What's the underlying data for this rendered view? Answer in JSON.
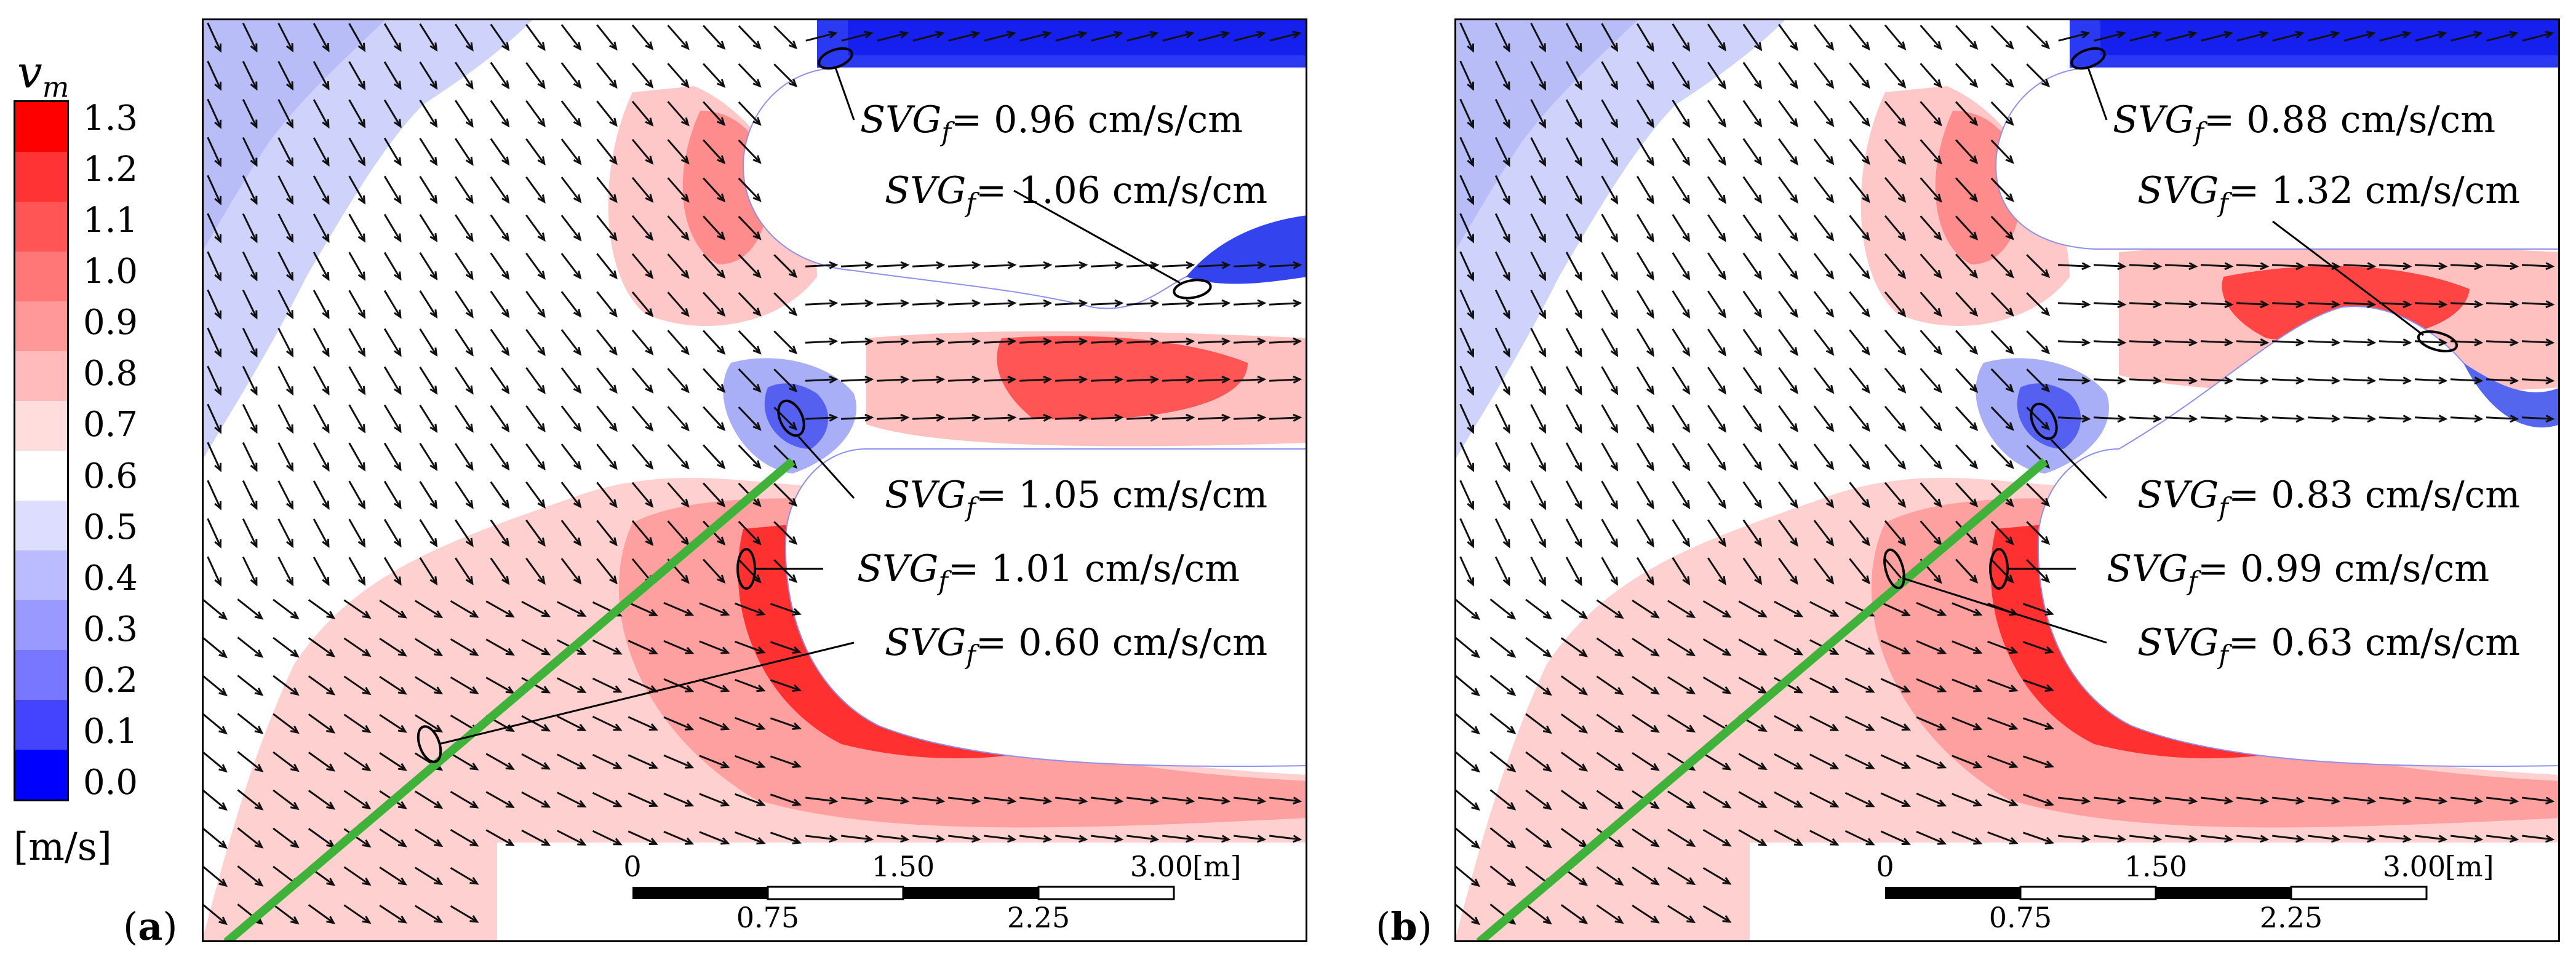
{
  "colorbar": {
    "variable": "v",
    "subscript": "m",
    "unit": "[m/s]",
    "ticks": [
      "1.3",
      "1.2",
      "1.1",
      "1.0",
      "0.9",
      "0.8",
      "0.7",
      "0.6",
      "0.5",
      "0.4",
      "0.3",
      "0.2",
      "0.1",
      "0.0"
    ],
    "colors": [
      "#ff0000",
      "#ff3333",
      "#ff5555",
      "#ff7777",
      "#ff9999",
      "#ffbbbb",
      "#ffdddd",
      "#ffffff",
      "#ddddff",
      "#bbbbff",
      "#9999ff",
      "#7777ff",
      "#4444ff",
      "#0000ff"
    ]
  },
  "panels": [
    {
      "label": "a",
      "annotations": [
        {
          "label": "SVG",
          "sub": "f",
          "value": "= 0.96 cm/s/cm"
        },
        {
          "label": "SVG",
          "sub": "f",
          "value": "= 1.06 cm/s/cm"
        },
        {
          "label": "SVG",
          "sub": "f",
          "value": "= 1.05 cm/s/cm"
        },
        {
          "label": "SVG",
          "sub": "f",
          "value": "= 1.01 cm/s/cm"
        },
        {
          "label": "SVG",
          "sub": "f",
          "value": "= 0.60 cm/s/cm"
        }
      ]
    },
    {
      "label": "b",
      "annotations": [
        {
          "label": "SVG",
          "sub": "f",
          "value": "= 0.88 cm/s/cm"
        },
        {
          "label": "SVG",
          "sub": "f",
          "value": "= 1.32 cm/s/cm"
        },
        {
          "label": "SVG",
          "sub": "f",
          "value": "= 0.83 cm/s/cm"
        },
        {
          "label": "SVG",
          "sub": "f",
          "value": "= 0.99 cm/s/cm"
        },
        {
          "label": "SVG",
          "sub": "f",
          "value": "= 0.63 cm/s/cm"
        }
      ]
    }
  ],
  "scalebar": {
    "top_labels": [
      "0",
      "1.50",
      "3.00"
    ],
    "bottom_labels": [
      "0.75",
      "2.25"
    ],
    "unit": "[m]"
  }
}
